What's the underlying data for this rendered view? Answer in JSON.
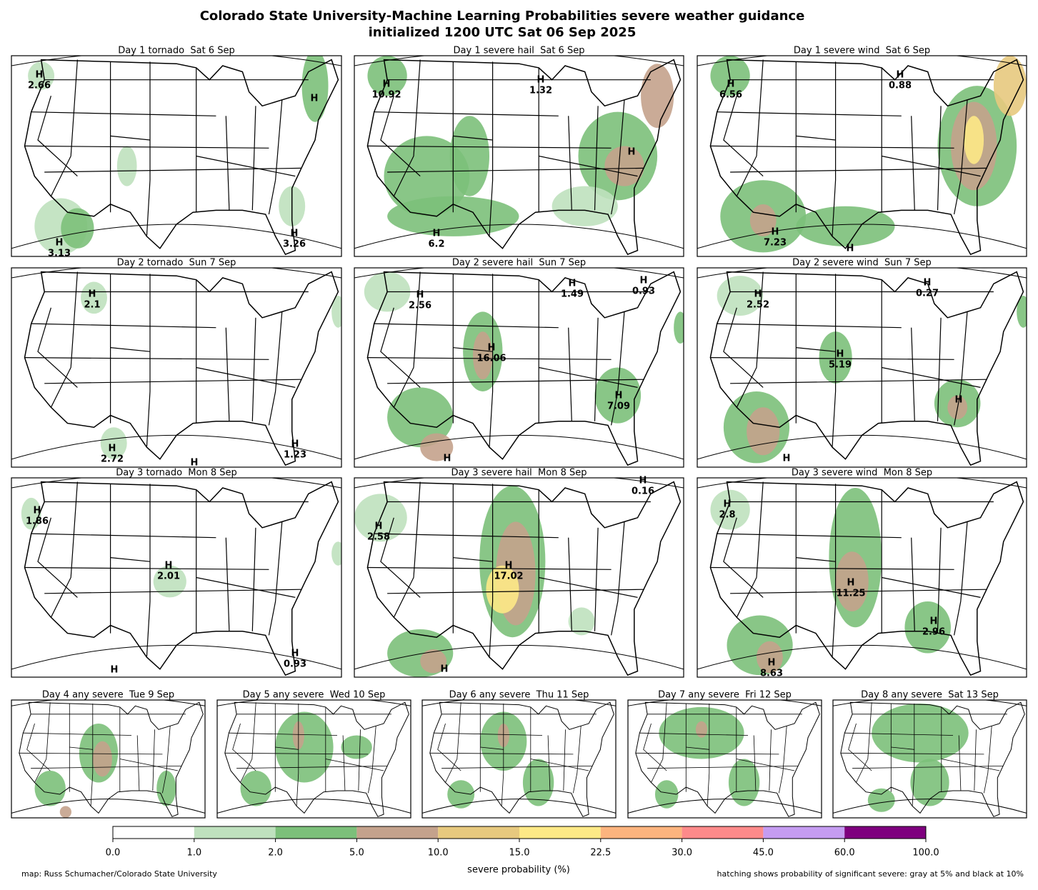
{
  "title": [
    "Colorado State University-Machine Learning Probabilities severe weather guidance",
    "initialized 1200 UTC Sat 06 Sep 2025"
  ],
  "panels": [
    {
      "title": "Day 1 tornado  Sat 6 Sep",
      "highs": [
        {
          "label": "H",
          "value": 2.66
        },
        {
          "label": "H"
        },
        {
          "label": "H",
          "value": 3.13
        },
        {
          "label": "H",
          "value": 3.26
        }
      ]
    },
    {
      "title": "Day 1 severe hail  Sat 6 Sep",
      "highs": [
        {
          "label": "H",
          "value": 10.92
        },
        {
          "label": "H",
          "value": 1.32
        },
        {
          "label": "H",
          "value": 6.2
        },
        {
          "label": "H"
        }
      ]
    },
    {
      "title": "Day 1 severe wind  Sat 6 Sep",
      "highs": [
        {
          "label": "H",
          "value": 6.56
        },
        {
          "label": "H",
          "value": 0.88
        },
        {
          "label": "H",
          "value": 7.23
        },
        {
          "label": "H"
        }
      ]
    },
    {
      "title": "Day 2 tornado  Sun 7 Sep",
      "highs": [
        {
          "label": "H",
          "value": 2.1
        },
        {
          "label": "H",
          "value": 2.72
        },
        {
          "label": "H"
        },
        {
          "label": "H",
          "value": 1.23
        }
      ]
    },
    {
      "title": "Day 2 severe hail  Sun 7 Sep",
      "highs": [
        {
          "label": "H",
          "value": 2.56
        },
        {
          "label": "H",
          "value": 1.49
        },
        {
          "label": "H",
          "value": 0.93
        },
        {
          "label": "H",
          "value": 16.06
        },
        {
          "label": "H",
          "value": 7.09
        },
        {
          "label": "H"
        }
      ]
    },
    {
      "title": "Day 2 severe wind  Sun 7 Sep",
      "highs": [
        {
          "label": "H",
          "value": 2.52
        },
        {
          "label": "H",
          "value": 0.27
        },
        {
          "label": "H",
          "value": 5.19
        },
        {
          "label": "H"
        },
        {
          "label": "H"
        }
      ]
    },
    {
      "title": "Day 3 tornado  Mon 8 Sep",
      "highs": [
        {
          "label": "H",
          "value": 1.86
        },
        {
          "label": "H",
          "value": 2.01
        },
        {
          "label": "H",
          "value": 0.93
        },
        {
          "label": "H"
        }
      ]
    },
    {
      "title": "Day 3 severe hail  Mon 8 Sep",
      "highs": [
        {
          "label": "H",
          "value": 2.58
        },
        {
          "label": "H",
          "value": 0.16
        },
        {
          "label": "H",
          "value": 17.02
        },
        {
          "label": "H"
        }
      ]
    },
    {
      "title": "Day 3 severe wind  Mon 8 Sep",
      "highs": [
        {
          "label": "H",
          "value": 2.8
        },
        {
          "label": "H",
          "value": 11.25
        },
        {
          "label": "H",
          "value": 2.96
        },
        {
          "label": "H",
          "value": 8.63
        }
      ]
    },
    {
      "title": "Day 4 any severe  Tue 9 Sep",
      "highs": []
    },
    {
      "title": "Day 5 any severe  Wed 10 Sep",
      "highs": []
    },
    {
      "title": "Day 6 any severe  Thu 11 Sep",
      "highs": []
    },
    {
      "title": "Day 7 any severe  Fri 12 Sep",
      "highs": []
    },
    {
      "title": "Day 8 any severe  Sat 13 Sep",
      "highs": []
    }
  ],
  "colorbar": {
    "ticks": [
      {
        "value": 0,
        "label": "0.0"
      },
      {
        "value": 1,
        "label": "1.0"
      },
      {
        "value": 2,
        "label": "2.0"
      },
      {
        "value": 5,
        "label": "5.0"
      },
      {
        "value": 10,
        "label": "10.0"
      },
      {
        "value": 15,
        "label": "15.0"
      },
      {
        "value": 22.5,
        "label": "22.5"
      },
      {
        "value": 30,
        "label": "30.0"
      },
      {
        "value": 45,
        "label": "45.0"
      },
      {
        "value": 60,
        "label": "60.0"
      },
      {
        "value": 100,
        "label": "100.0"
      }
    ],
    "colors": [
      "#ffffff",
      "#bfe1be",
      "#7cc07a",
      "#c4a28c",
      "#e7c97e",
      "#fde986",
      "#fcb47e",
      "#fd8a8a",
      "#c59cf1",
      "#7e007e"
    ],
    "label": "severe probability (%)"
  },
  "footer": {
    "left": "map: Russ Schumacher/Colorado State University",
    "right": "hatching shows probability of significant severe: gray at 5% and black at 10%"
  }
}
